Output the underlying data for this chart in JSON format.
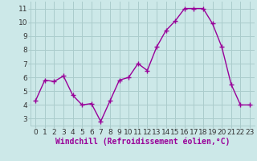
{
  "x": [
    0,
    1,
    2,
    3,
    4,
    5,
    6,
    7,
    8,
    9,
    10,
    11,
    12,
    13,
    14,
    15,
    16,
    17,
    18,
    19,
    20,
    21,
    22,
    23
  ],
  "y": [
    4.3,
    5.8,
    5.7,
    6.1,
    4.7,
    4.0,
    4.1,
    2.8,
    4.3,
    5.8,
    6.0,
    7.0,
    6.5,
    8.2,
    9.4,
    10.1,
    11.0,
    11.0,
    11.0,
    9.9,
    8.2,
    5.5,
    4.0,
    4.0
  ],
  "line_color": "#990099",
  "marker": "+",
  "marker_size": 4,
  "marker_edge_width": 1.0,
  "xlabel": "Windchill (Refroidissement éolien,°C)",
  "xlabel_fontsize": 7,
  "xlim": [
    -0.5,
    23.5
  ],
  "ylim": [
    2.5,
    11.5
  ],
  "yticks": [
    3,
    4,
    5,
    6,
    7,
    8,
    9,
    10,
    11
  ],
  "xticks": [
    0,
    1,
    2,
    3,
    4,
    5,
    6,
    7,
    8,
    9,
    10,
    11,
    12,
    13,
    14,
    15,
    16,
    17,
    18,
    19,
    20,
    21,
    22,
    23
  ],
  "bg_color": "#cce8e8",
  "grid_color": "#aacccc",
  "tick_fontsize": 6.5,
  "line_width": 1.0,
  "fig_width": 3.2,
  "fig_height": 2.0,
  "dpi": 100
}
